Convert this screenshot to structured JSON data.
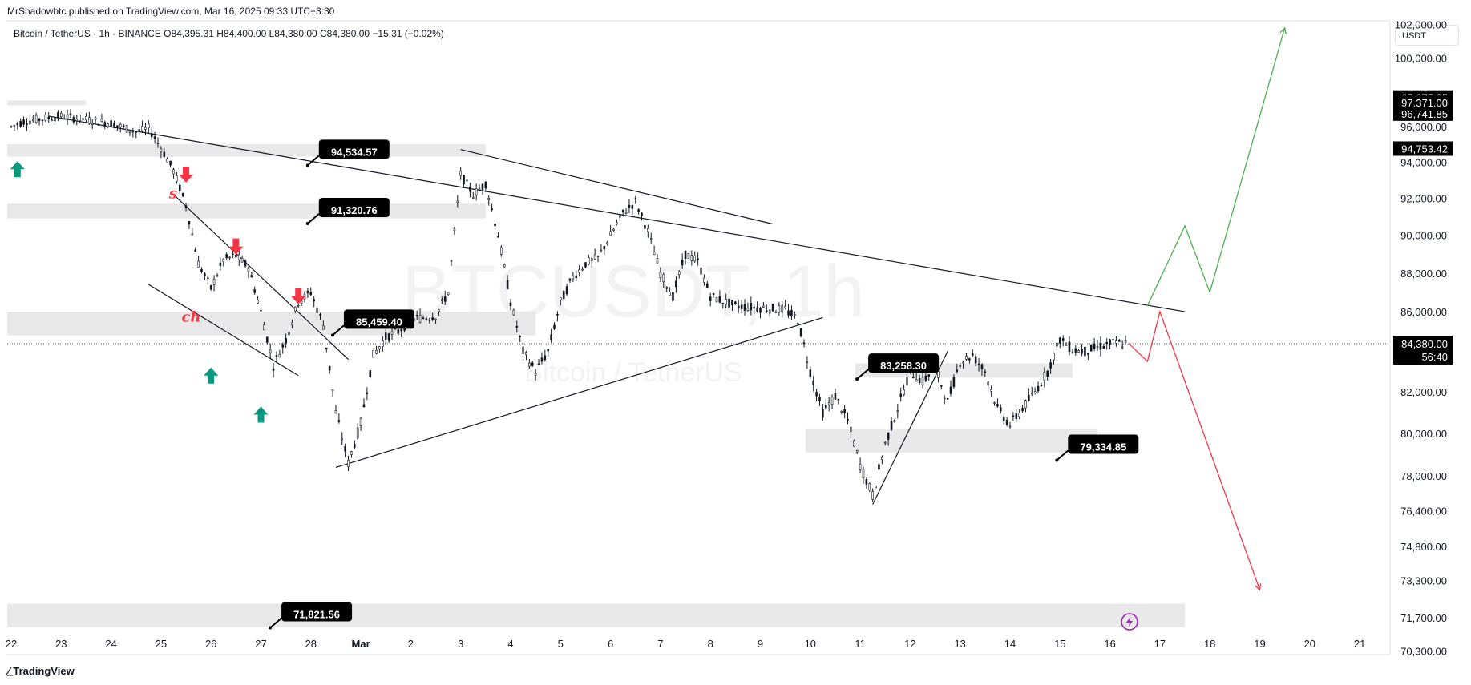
{
  "header": {
    "published": "MrShadowbtc published on TradingView.com, Mar 16, 2025 09:33 UTC+3:30",
    "symbol_line": "Bitcoin / TetherUS · 1h · BINANCE  O84,395.31  H84,400.00  L84,380.00  C84,380.00  −15.31 (−0.02%)"
  },
  "currency_button": "USDT",
  "watermark": {
    "main": "BTCUSDT, 1h",
    "sub": "Bitcoin / TetherUS"
  },
  "footer": {
    "brand": "TradingView"
  },
  "colors": {
    "up_arrow": "#089981",
    "down_arrow": "#f23645",
    "bull_path": "#4caf50",
    "bear_path": "#f23645",
    "zone": "#e8e8e8",
    "label_bg": "#000000"
  },
  "chart_data": {
    "type": "line",
    "title": "",
    "interval": "1h",
    "x_ticks": [
      "22",
      "23",
      "24",
      "25",
      "26",
      "27",
      "28",
      "Mar",
      "2",
      "3",
      "4",
      "5",
      "6",
      "7",
      "8",
      "9",
      "10",
      "11",
      "12",
      "13",
      "14",
      "15",
      "16",
      "17",
      "18",
      "19",
      "20",
      "21"
    ],
    "y_ticks": [
      "102,000.00",
      "100,000.00",
      "96,000.00",
      "94,000.00",
      "92,000.00",
      "90,000.00",
      "88,000.00",
      "86,000.00",
      "82,000.00",
      "80,000.00",
      "78,000.00",
      "76,400.00",
      "74,800.00",
      "73,300.00",
      "71,700.00",
      "70,300.00"
    ],
    "price_axis_labels": [
      "97,675.25",
      "97,371.00",
      "96,741.85",
      "94,753.42"
    ],
    "current_price": {
      "price": "84,380.00",
      "countdown": "56:40"
    },
    "price_series": {
      "name": "",
      "points": [
        {
          "x": "Feb 22 00:00",
          "y": 96000
        },
        {
          "x": "Feb 22 06:00",
          "y": 96300
        },
        {
          "x": "Feb 22 18:00",
          "y": 96500
        },
        {
          "x": "Feb 23 00:00",
          "y": 96600
        },
        {
          "x": "Feb 23 12:00",
          "y": 96400
        },
        {
          "x": "Feb 24 00:00",
          "y": 96200
        },
        {
          "x": "Feb 24 12:00",
          "y": 95700
        },
        {
          "x": "Feb 24 18:00",
          "y": 95900
        },
        {
          "x": "Feb 25 00:00",
          "y": 94800
        },
        {
          "x": "Feb 25 06:00",
          "y": 93500
        },
        {
          "x": "Feb 25 12:00",
          "y": 91600
        },
        {
          "x": "Feb 25 18:00",
          "y": 88500
        },
        {
          "x": "Feb 26 00:00",
          "y": 87200
        },
        {
          "x": "Feb 26 06:00",
          "y": 88700
        },
        {
          "x": "Feb 26 12:00",
          "y": 88900
        },
        {
          "x": "Feb 26 18:00",
          "y": 88300
        },
        {
          "x": "Feb 27 00:00",
          "y": 86000
        },
        {
          "x": "Feb 27 06:00",
          "y": 83300
        },
        {
          "x": "Feb 27 12:00",
          "y": 84600
        },
        {
          "x": "Feb 27 18:00",
          "y": 86500
        },
        {
          "x": "Feb 28 00:00",
          "y": 87000
        },
        {
          "x": "Feb 28 06:00",
          "y": 85300
        },
        {
          "x": "Feb 28 12:00",
          "y": 81000
        },
        {
          "x": "Feb 28 18:00",
          "y": 78600
        },
        {
          "x": "Mar 1 00:00",
          "y": 80500
        },
        {
          "x": "Mar 1 06:00",
          "y": 83800
        },
        {
          "x": "Mar 1 12:00",
          "y": 84700
        },
        {
          "x": "Mar 1 18:00",
          "y": 85000
        },
        {
          "x": "Mar 2 00:00",
          "y": 85600
        },
        {
          "x": "Mar 2 12:00",
          "y": 85800
        },
        {
          "x": "Mar 2 18:00",
          "y": 87000
        },
        {
          "x": "Mar 3 00:00",
          "y": 93300
        },
        {
          "x": "Mar 3 06:00",
          "y": 92200
        },
        {
          "x": "Mar 3 12:00",
          "y": 92800
        },
        {
          "x": "Mar 3 18:00",
          "y": 90000
        },
        {
          "x": "Mar 4 00:00",
          "y": 86500
        },
        {
          "x": "Mar 4 06:00",
          "y": 84000
        },
        {
          "x": "Mar 4 12:00",
          "y": 83000
        },
        {
          "x": "Mar 4 18:00",
          "y": 84000
        },
        {
          "x": "Mar 5 00:00",
          "y": 86500
        },
        {
          "x": "Mar 5 06:00",
          "y": 87800
        },
        {
          "x": "Mar 5 12:00",
          "y": 88500
        },
        {
          "x": "Mar 5 18:00",
          "y": 88800
        },
        {
          "x": "Mar 6 00:00",
          "y": 90000
        },
        {
          "x": "Mar 6 06:00",
          "y": 91200
        },
        {
          "x": "Mar 6 12:00",
          "y": 91800
        },
        {
          "x": "Mar 6 18:00",
          "y": 90200
        },
        {
          "x": "Mar 7 00:00",
          "y": 88000
        },
        {
          "x": "Mar 7 06:00",
          "y": 86800
        },
        {
          "x": "Mar 7 12:00",
          "y": 89000
        },
        {
          "x": "Mar 7 18:00",
          "y": 88600
        },
        {
          "x": "Mar 8 00:00",
          "y": 86800
        },
        {
          "x": "Mar 8 12:00",
          "y": 86300
        },
        {
          "x": "Mar 9 00:00",
          "y": 86200
        },
        {
          "x": "Mar 9 12:00",
          "y": 86100
        },
        {
          "x": "Mar 9 18:00",
          "y": 85600
        },
        {
          "x": "Mar 10 00:00",
          "y": 83000
        },
        {
          "x": "Mar 10 06:00",
          "y": 81000
        },
        {
          "x": "Mar 10 12:00",
          "y": 81800
        },
        {
          "x": "Mar 10 18:00",
          "y": 80600
        },
        {
          "x": "Mar 11 00:00",
          "y": 78500
        },
        {
          "x": "Mar 11 06:00",
          "y": 77100
        },
        {
          "x": "Mar 11 12:00",
          "y": 79500
        },
        {
          "x": "Mar 11 18:00",
          "y": 81200
        },
        {
          "x": "Mar 12 00:00",
          "y": 83000
        },
        {
          "x": "Mar 12 06:00",
          "y": 82500
        },
        {
          "x": "Mar 12 12:00",
          "y": 83200
        },
        {
          "x": "Mar 12 18:00",
          "y": 81500
        },
        {
          "x": "Mar 13 00:00",
          "y": 83500
        },
        {
          "x": "Mar 13 06:00",
          "y": 83800
        },
        {
          "x": "Mar 13 12:00",
          "y": 83000
        },
        {
          "x": "Mar 13 18:00",
          "y": 81200
        },
        {
          "x": "Mar 14 00:00",
          "y": 80400
        },
        {
          "x": "Mar 14 06:00",
          "y": 81200
        },
        {
          "x": "Mar 14 12:00",
          "y": 82000
        },
        {
          "x": "Mar 14 18:00",
          "y": 83000
        },
        {
          "x": "Mar 15 00:00",
          "y": 84600
        },
        {
          "x": "Mar 15 06:00",
          "y": 84100
        },
        {
          "x": "Mar 15 12:00",
          "y": 84000
        },
        {
          "x": "Mar 15 18:00",
          "y": 84200
        },
        {
          "x": "Mar 16 00:00",
          "y": 84400
        },
        {
          "x": "Mar 16 09:00",
          "y": 84380
        }
      ]
    },
    "price_labels": [
      {
        "text": "94,534.57",
        "x": "Feb 28 00:00",
        "y": 94534.57
      },
      {
        "text": "91,320.76",
        "x": "Feb 28 00:00",
        "y": 91320.76
      },
      {
        "text": "85,459.40",
        "x": "Feb 28 12:00",
        "y": 85459.4
      },
      {
        "text": "83,258.30",
        "x": "Mar 11 00:00",
        "y": 83258.3
      },
      {
        "text": "79,334.85",
        "x": "Mar 15 00:00",
        "y": 79334.85
      },
      {
        "text": "71,821.56",
        "x": "Feb 27 06:00",
        "y": 71821.56
      }
    ],
    "zones": [
      {
        "x0": "Feb 22 00:00",
        "x1": "Mar 3 12:00",
        "y0": 94300,
        "y1": 95000
      },
      {
        "x0": "Feb 22 00:00",
        "x1": "Mar 3 12:00",
        "y0": 90900,
        "y1": 91700
      },
      {
        "x0": "Feb 22 00:00",
        "x1": "Mar 4 12:00",
        "y0": 84800,
        "y1": 86000
      },
      {
        "x0": "Mar 11 00:00",
        "x1": "Mar 15 06:00",
        "y0": 82700,
        "y1": 83400
      },
      {
        "x0": "Mar 10 00:00",
        "x1": "Mar 15 18:00",
        "y0": 79100,
        "y1": 80200
      },
      {
        "x0": "Feb 22 00:00",
        "x1": "Mar 17 12:00",
        "y0": 71300,
        "y1": 72300
      },
      {
        "x0": "Feb 22 00:00",
        "x1": "Feb 23 12:00",
        "y0": 97300,
        "y1": 97500
      }
    ],
    "trendlines": [
      {
        "x0": "Feb 22 18:00",
        "y0": 96600,
        "x1": "Mar 17 12:00",
        "y1": 86000
      },
      {
        "x0": "Mar 3 00:00",
        "y0": 94700,
        "x1": "Mar 9 06:00",
        "y1": 90600
      },
      {
        "x0": "Feb 25 06:00",
        "y0": 92200,
        "x1": "Feb 28 18:00",
        "y1": 83600
      },
      {
        "x0": "Feb 24 18:00",
        "y0": 87400,
        "x1": "Feb 27 18:00",
        "y1": 82800
      },
      {
        "x0": "Feb 28 12:00",
        "y0": 78400,
        "x1": "Mar 10 06:00",
        "y1": 85700
      },
      {
        "x0": "Mar 11 06:00",
        "y0": 76700,
        "x1": "Mar 12 18:00",
        "y1": 84000
      }
    ],
    "projections": [
      {
        "name": "",
        "color": "#4caf50",
        "points": [
          {
            "x": "Mar 16 18:00",
            "y": 86300
          },
          {
            "x": "Mar 17 12:00",
            "y": 90500
          },
          {
            "x": "Mar 18 00:00",
            "y": 87000
          },
          {
            "x": "Mar 19 12:00",
            "y": 101800
          }
        ]
      },
      {
        "name": "",
        "color": "#f23645",
        "points": [
          {
            "x": "Mar 16 09:00",
            "y": 84400
          },
          {
            "x": "Mar 16 18:00",
            "y": 83500
          },
          {
            "x": "Mar 17 00:00",
            "y": 86000
          },
          {
            "x": "Mar 19 00:00",
            "y": 72900
          }
        ]
      }
    ],
    "arrows": [
      {
        "dir": "up",
        "x": "Feb 22 03:00",
        "y": 93600
      },
      {
        "dir": "down",
        "x": "Feb 25 12:00",
        "y": 93300
      },
      {
        "dir": "down",
        "x": "Feb 26 12:00",
        "y": 89400
      },
      {
        "dir": "down",
        "x": "Feb 27 18:00",
        "y": 86800
      },
      {
        "dir": "up",
        "x": "Feb 26 00:00",
        "y": 82800
      },
      {
        "dir": "up",
        "x": "Feb 27 00:00",
        "y": 80900
      }
    ],
    "annotations": [
      {
        "text": "s",
        "x": "Feb 25 00:00",
        "y": 92000,
        "color": "#f23645"
      },
      {
        "text": "ch",
        "x": "Feb 25 06:00",
        "y": 85500,
        "color": "#f23645"
      }
    ],
    "ylim": [
      70000,
      104000
    ],
    "grid": false,
    "legend": "none"
  }
}
